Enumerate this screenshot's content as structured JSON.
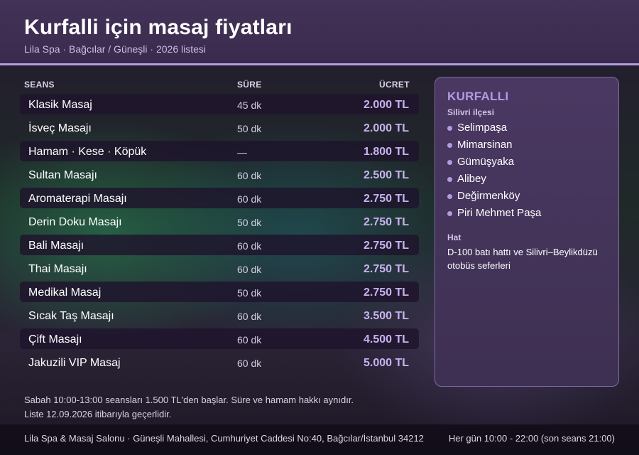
{
  "header": {
    "title": "Kurfalli için masaj fiyatları",
    "subtitle": "Lila Spa · Bağcılar / Güneşli · 2026 listesi"
  },
  "columns": {
    "session": "SEANS",
    "duration": "SÜRE",
    "price": "ÜCRET"
  },
  "services": [
    {
      "name": "Klasik Masaj",
      "duration": "45 dk",
      "price": "2.000 TL"
    },
    {
      "name": "İsveç Masajı",
      "duration": "50 dk",
      "price": "2.000 TL"
    },
    {
      "name": "Hamam · Kese · Köpük",
      "duration": "—",
      "price": "1.800 TL"
    },
    {
      "name": "Sultan Masajı",
      "duration": "60 dk",
      "price": "2.500 TL"
    },
    {
      "name": "Aromaterapi Masajı",
      "duration": "60 dk",
      "price": "2.750 TL"
    },
    {
      "name": "Derin Doku Masajı",
      "duration": "50 dk",
      "price": "2.750 TL"
    },
    {
      "name": "Bali Masajı",
      "duration": "60 dk",
      "price": "2.750 TL"
    },
    {
      "name": "Thai Masajı",
      "duration": "60 dk",
      "price": "2.750 TL"
    },
    {
      "name": "Medikal Masaj",
      "duration": "50 dk",
      "price": "2.750 TL"
    },
    {
      "name": "Sıcak Taş Masajı",
      "duration": "60 dk",
      "price": "3.500 TL"
    },
    {
      "name": "Çift Masajı",
      "duration": "60 dk",
      "price": "4.500 TL"
    },
    {
      "name": "Jakuzili VIP Masaj",
      "duration": "60 dk",
      "price": "5.000 TL"
    }
  ],
  "sidebar": {
    "title": "KURFALLI",
    "subtitle": "Silivri ilçesi",
    "districts": [
      "Selimpaşa",
      "Mimarsinan",
      "Gümüşyaka",
      "Alibey",
      "Değirmenköy",
      "Piri Mehmet Paşa"
    ],
    "route_label": "Hat",
    "route_text": "D-100 batı hattı ve Silivri–Beylikdüzü otobüs seferleri"
  },
  "notes": {
    "line1": "Sabah 10:00-13:00 seansları 1.500 TL'den başlar. Süre ve hamam hakkı aynıdır.",
    "line2": "Liste 12.09.2026 itibarıyla geçerlidir."
  },
  "footer": {
    "address": "Lila Spa & Masaj Salonu · Güneşli Mahallesi, Cumhuriyet Caddesi No:40, Bağcılar/İstanbul 34212",
    "hours": "Her gün 10:00 - 22:00 (son seans 21:00)"
  },
  "colors": {
    "accent": "#b49be0",
    "header_bg": "#3a2b4e",
    "price": "#c8b2ef",
    "footer_bg": "#120d18"
  }
}
